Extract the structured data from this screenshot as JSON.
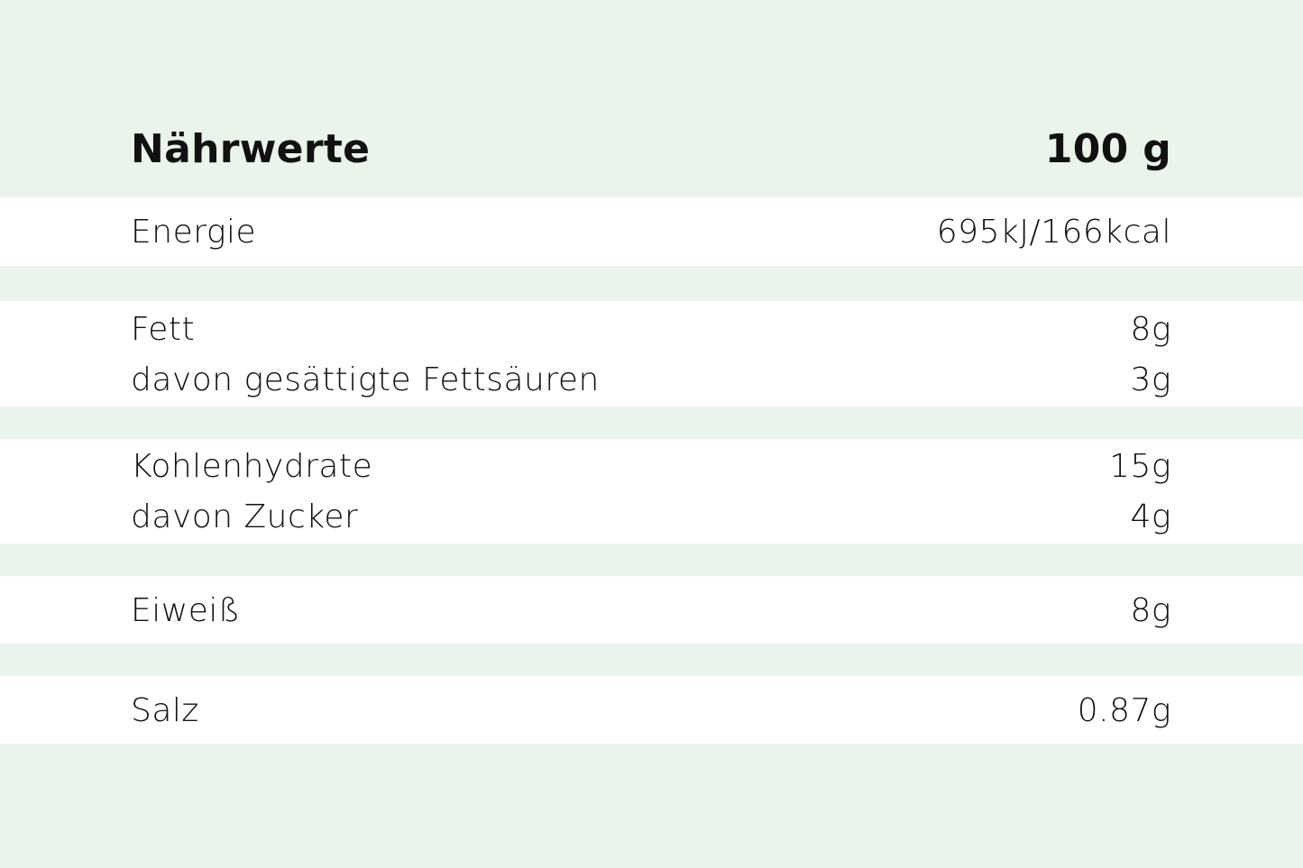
{
  "header": {
    "label": "Nährwerte",
    "amount": "100 g"
  },
  "background_color": "#eaf4ea",
  "groups": [
    {
      "rows": [
        {
          "label": "Energie",
          "value": "695kJ/166kcal"
        }
      ]
    },
    {
      "rows": [
        {
          "label": "Fett",
          "value": "8g"
        },
        {
          "label": "davon gesättigte Fettsäuren",
          "value": "3g"
        }
      ]
    },
    {
      "rows": [
        {
          "label": "Kohlenhydrate",
          "value": "15g"
        },
        {
          "label": "davon Zucker",
          "value": "4g"
        }
      ]
    },
    {
      "rows": [
        {
          "label": "Eiweiß",
          "value": "8g"
        }
      ]
    },
    {
      "rows": [
        {
          "label": "Salz",
          "value": "0.87g"
        }
      ]
    }
  ]
}
